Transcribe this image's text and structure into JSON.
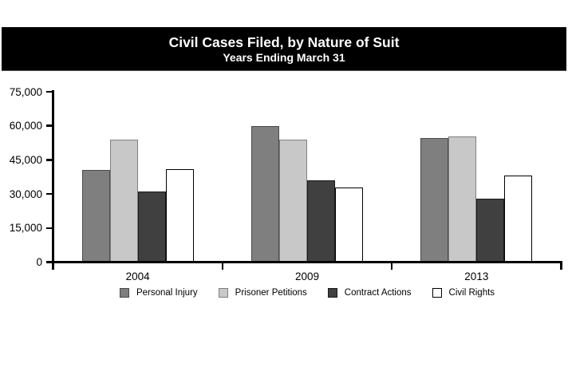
{
  "header": {
    "title": "Civil Cases Filed, by Nature of Suit",
    "subtitle": "Years Ending March 31"
  },
  "chart_data": {
    "type": "bar",
    "title": "Civil Cases Filed, by Nature of Suit",
    "subtitle": "Years Ending March 31",
    "categories": [
      "2004",
      "2009",
      "2013"
    ],
    "series": [
      {
        "name": "Personal Injury",
        "color": "#7f7f7f",
        "border": "#4a4a4a",
        "values": [
          40500,
          60000,
          54500
        ]
      },
      {
        "name": "Prisoner Petitions",
        "color": "#c8c8c8",
        "border": "#7f7f7f",
        "values": [
          54000,
          54000,
          55500
        ]
      },
      {
        "name": "Contract Actions",
        "color": "#404040",
        "border": "#1a1a1a",
        "values": [
          31000,
          36000,
          28000
        ]
      },
      {
        "name": "Civil Rights",
        "color": "#ffffff",
        "border": "#000000",
        "values": [
          41000,
          33000,
          38000
        ]
      }
    ],
    "ylim": [
      0,
      75000
    ],
    "y_tick_step": 15000,
    "y_tick_labels": [
      "0",
      "15,000",
      "30,000",
      "45,000",
      "60,000",
      "75,000"
    ],
    "xlabel": "",
    "ylabel": "",
    "grid": false,
    "legend_position": "bottom",
    "colors": {
      "title_bar_bg": "#000000",
      "title_bar_text": "#ffffff",
      "axis": "#000000"
    }
  }
}
